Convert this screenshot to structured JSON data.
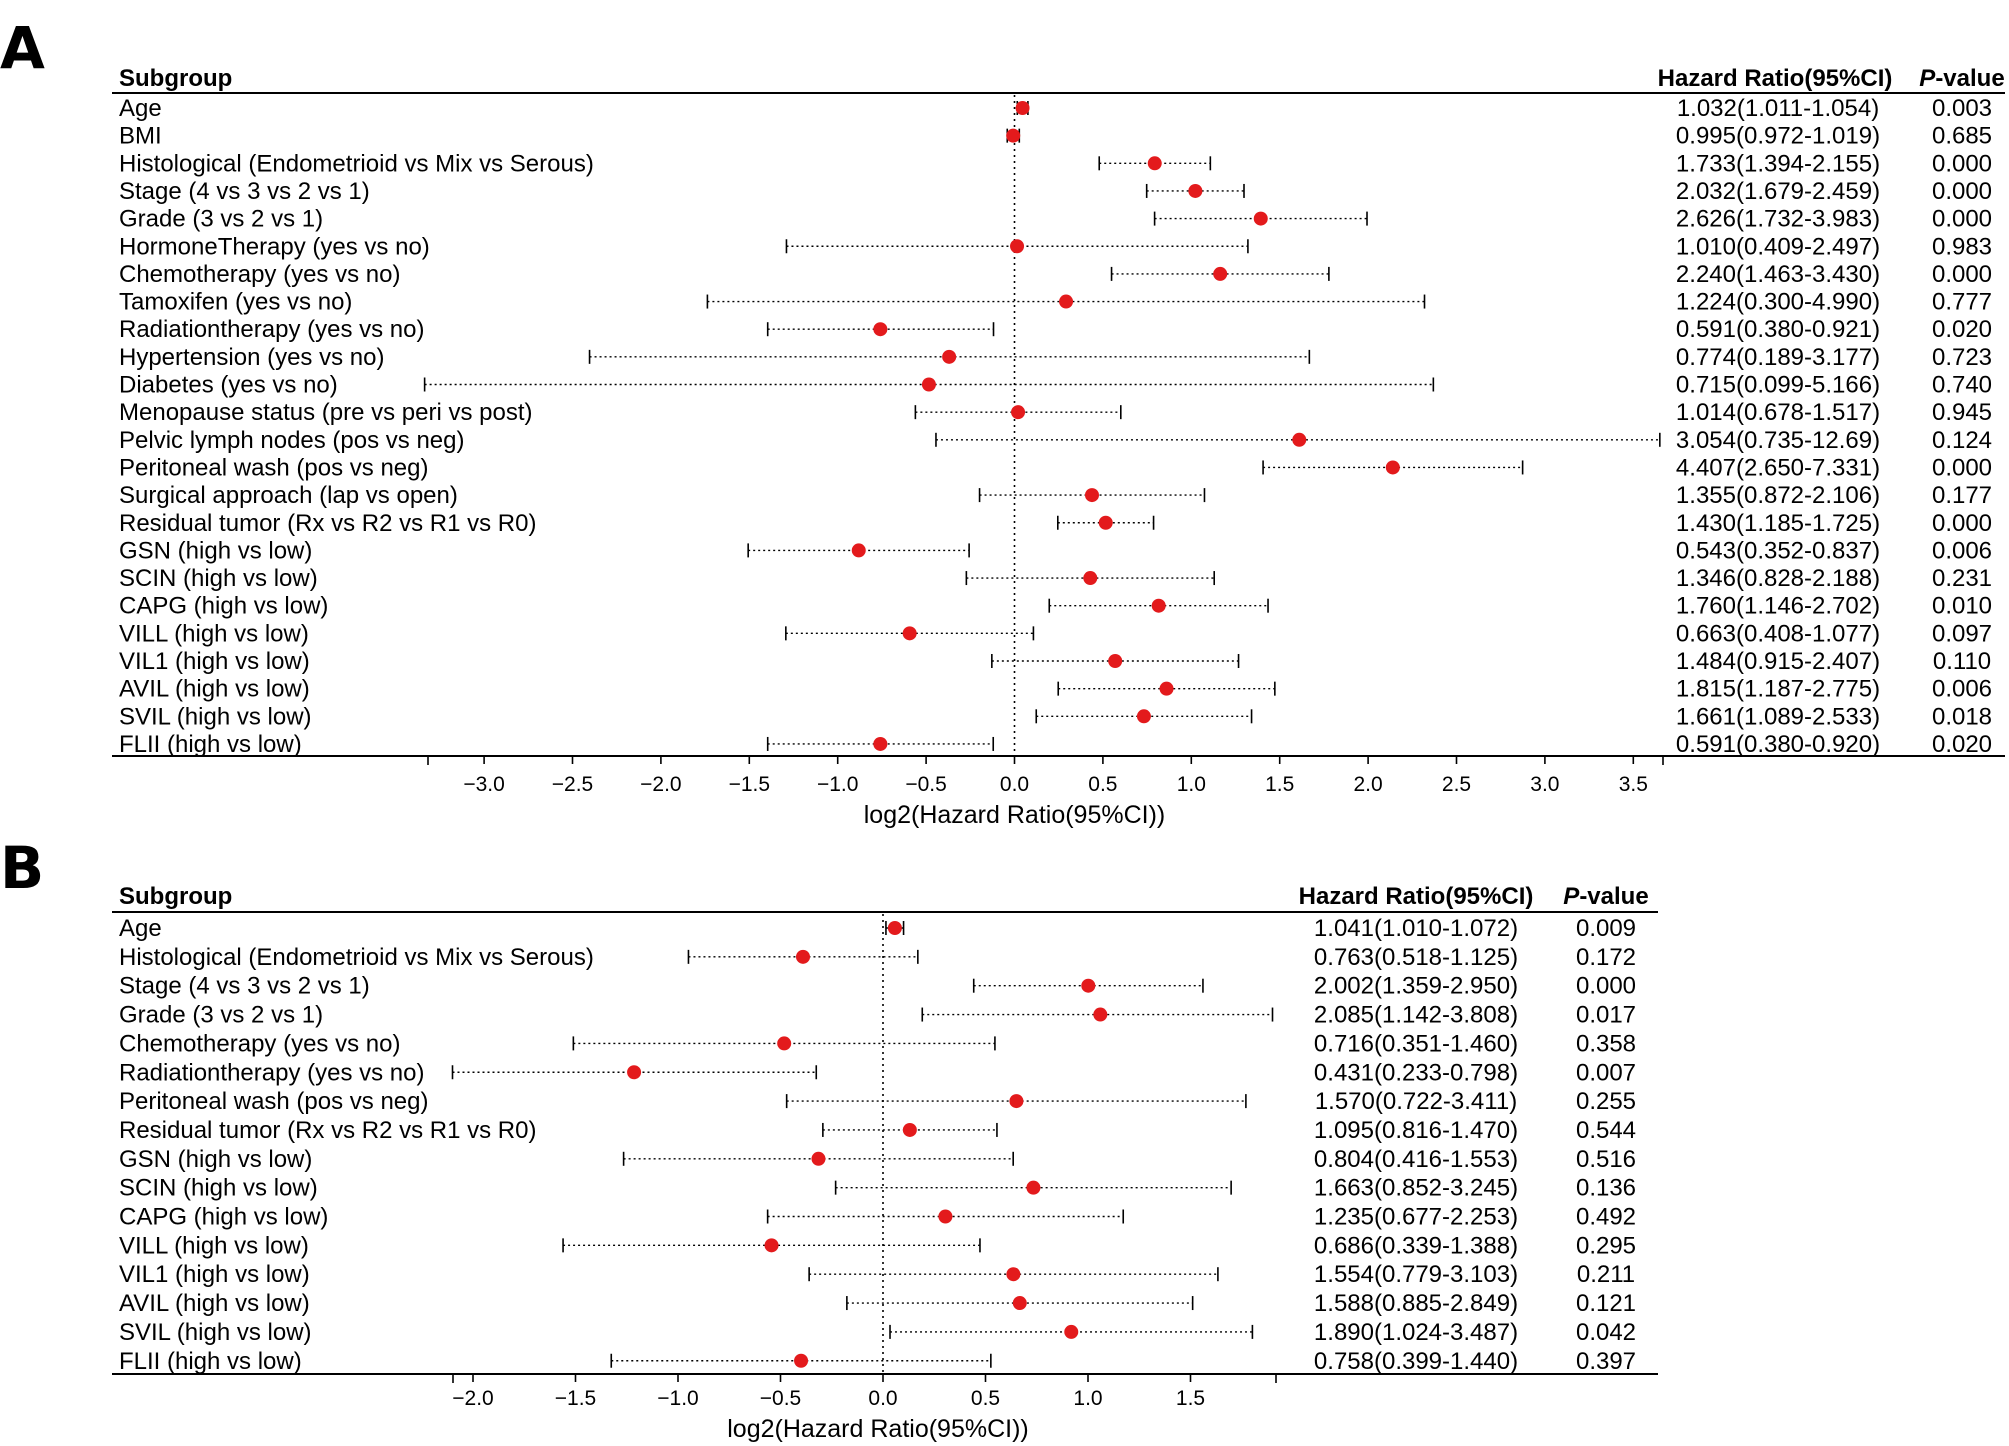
{
  "chart_data": [
    {
      "type": "forest",
      "panel_label": "A",
      "header": {
        "subgroup": "Subgroup",
        "hr": "Hazard Ratio(95%CI)",
        "p_italic": "P",
        "p_rest": "-value"
      },
      "xlabel": "log2(Hazard Ratio(95%CI))",
      "xticks": [
        "−3.0",
        "−2.5",
        "−2.0",
        "−1.5",
        "−1.0",
        "−0.5",
        "0.0",
        "0.5",
        "1.0",
        "1.5",
        "2.0",
        "2.5",
        "3.0",
        "3.5"
      ],
      "xlim": [
        -3.35,
        3.65
      ],
      "reference_line": 0,
      "marker_color": "#e31a1c",
      "rows": [
        {
          "label": "Age",
          "hr_text": "1.032(1.011-1.054)",
          "p": "0.003",
          "hr": 1.032,
          "lo": 1.011,
          "hi": 1.054
        },
        {
          "label": "BMI",
          "hr_text": "0.995(0.972-1.019)",
          "p": "0.685",
          "hr": 0.995,
          "lo": 0.972,
          "hi": 1.019
        },
        {
          "label": "Histological (Endometrioid vs Mix vs Serous)",
          "hr_text": "1.733(1.394-2.155)",
          "p": "0.000",
          "hr": 1.733,
          "lo": 1.394,
          "hi": 2.155
        },
        {
          "label": "Stage (4 vs 3 vs 2 vs 1)",
          "hr_text": "2.032(1.679-2.459)",
          "p": "0.000",
          "hr": 2.032,
          "lo": 1.679,
          "hi": 2.459
        },
        {
          "label": "Grade (3 vs 2 vs 1)",
          "hr_text": "2.626(1.732-3.983)",
          "p": "0.000",
          "hr": 2.626,
          "lo": 1.732,
          "hi": 3.983
        },
        {
          "label": "HormoneTherapy (yes vs no)",
          "hr_text": "1.010(0.409-2.497)",
          "p": "0.983",
          "hr": 1.01,
          "lo": 0.409,
          "hi": 2.497
        },
        {
          "label": "Chemotherapy (yes vs no)",
          "hr_text": "2.240(1.463-3.430)",
          "p": "0.000",
          "hr": 2.24,
          "lo": 1.463,
          "hi": 3.43
        },
        {
          "label": "Tamoxifen (yes vs no)",
          "hr_text": "1.224(0.300-4.990)",
          "p": "0.777",
          "hr": 1.224,
          "lo": 0.3,
          "hi": 4.99
        },
        {
          "label": "Radiationtherapy (yes vs no)",
          "hr_text": "0.591(0.380-0.921)",
          "p": "0.020",
          "hr": 0.591,
          "lo": 0.38,
          "hi": 0.921
        },
        {
          "label": "Hypertension (yes vs no)",
          "hr_text": "0.774(0.189-3.177)",
          "p": "0.723",
          "hr": 0.774,
          "lo": 0.189,
          "hi": 3.177
        },
        {
          "label": "Diabetes (yes vs no)",
          "hr_text": "0.715(0.099-5.166)",
          "p": "0.740",
          "hr": 0.715,
          "lo": 0.099,
          "hi": 5.166
        },
        {
          "label": "Menopause status (pre vs peri vs post)",
          "hr_text": "1.014(0.678-1.517)",
          "p": "0.945",
          "hr": 1.014,
          "lo": 0.678,
          "hi": 1.517
        },
        {
          "label": "Pelvic lymph nodes (pos vs neg)",
          "hr_text": "3.054(0.735-12.69)",
          "p": "0.124",
          "hr": 3.054,
          "lo": 0.735,
          "hi": 12.69
        },
        {
          "label": "Peritoneal wash (pos vs neg)",
          "hr_text": "4.407(2.650-7.331)",
          "p": "0.000",
          "hr": 4.407,
          "lo": 2.65,
          "hi": 7.331
        },
        {
          "label": "Surgical approach (lap vs open)",
          "hr_text": "1.355(0.872-2.106)",
          "p": "0.177",
          "hr": 1.355,
          "lo": 0.872,
          "hi": 2.106
        },
        {
          "label": "Residual tumor (Rx vs R2 vs R1 vs R0)",
          "hr_text": "1.430(1.185-1.725)",
          "p": "0.000",
          "hr": 1.43,
          "lo": 1.185,
          "hi": 1.725
        },
        {
          "label": "GSN (high vs low)",
          "hr_text": "0.543(0.352-0.837)",
          "p": "0.006",
          "hr": 0.543,
          "lo": 0.352,
          "hi": 0.837
        },
        {
          "label": "SCIN (high vs low)",
          "hr_text": "1.346(0.828-2.188)",
          "p": "0.231",
          "hr": 1.346,
          "lo": 0.828,
          "hi": 2.188
        },
        {
          "label": "CAPG (high vs low)",
          "hr_text": "1.760(1.146-2.702)",
          "p": "0.010",
          "hr": 1.76,
          "lo": 1.146,
          "hi": 2.702
        },
        {
          "label": "VILL (high vs low)",
          "hr_text": "0.663(0.408-1.077)",
          "p": "0.097",
          "hr": 0.663,
          "lo": 0.408,
          "hi": 1.077
        },
        {
          "label": "VIL1 (high vs low)",
          "hr_text": "1.484(0.915-2.407)",
          "p": "0.110",
          "hr": 1.484,
          "lo": 0.915,
          "hi": 2.407
        },
        {
          "label": "AVIL (high vs low)",
          "hr_text": "1.815(1.187-2.775)",
          "p": "0.006",
          "hr": 1.815,
          "lo": 1.187,
          "hi": 2.775
        },
        {
          "label": "SVIL (high vs low)",
          "hr_text": "1.661(1.089-2.533)",
          "p": "0.018",
          "hr": 1.661,
          "lo": 1.089,
          "hi": 2.533
        },
        {
          "label": "FLII (high vs low)",
          "hr_text": "0.591(0.380-0.920)",
          "p": "0.020",
          "hr": 0.591,
          "lo": 0.38,
          "hi": 0.92
        }
      ]
    },
    {
      "type": "forest",
      "panel_label": "B",
      "header": {
        "subgroup": "Subgroup",
        "hr": "Hazard Ratio(95%CI)",
        "p_italic": "P",
        "p_rest": "-value"
      },
      "xlabel": "log2(Hazard Ratio(95%CI))",
      "xticks": [
        "−2.0",
        "−1.5",
        "−1.0",
        "−0.5",
        "0.0",
        "0.5",
        "1.0",
        "1.5"
      ],
      "xlim": [
        -2.1,
        1.9
      ],
      "reference_line": 0,
      "marker_color": "#e31a1c",
      "rows": [
        {
          "label": "Age",
          "hr_text": "1.041(1.010-1.072)",
          "p": "0.009",
          "hr": 1.041,
          "lo": 1.01,
          "hi": 1.072
        },
        {
          "label": "Histological (Endometrioid vs Mix vs Serous)",
          "hr_text": "0.763(0.518-1.125)",
          "p": "0.172",
          "hr": 0.763,
          "lo": 0.518,
          "hi": 1.125
        },
        {
          "label": "Stage (4 vs 3 vs 2 vs 1)",
          "hr_text": "2.002(1.359-2.950)",
          "p": "0.000",
          "hr": 2.002,
          "lo": 1.359,
          "hi": 2.95
        },
        {
          "label": "Grade (3 vs 2 vs 1)",
          "hr_text": "2.085(1.142-3.808)",
          "p": "0.017",
          "hr": 2.085,
          "lo": 1.142,
          "hi": 3.808
        },
        {
          "label": "Chemotherapy (yes vs no)",
          "hr_text": "0.716(0.351-1.460)",
          "p": "0.358",
          "hr": 0.716,
          "lo": 0.351,
          "hi": 1.46
        },
        {
          "label": "Radiationtherapy (yes vs no)",
          "hr_text": "0.431(0.233-0.798)",
          "p": "0.007",
          "hr": 0.431,
          "lo": 0.233,
          "hi": 0.798
        },
        {
          "label": "Peritoneal wash (pos vs neg)",
          "hr_text": "1.570(0.722-3.411)",
          "p": "0.255",
          "hr": 1.57,
          "lo": 0.722,
          "hi": 3.411
        },
        {
          "label": "Residual tumor (Rx vs R2 vs R1 vs R0)",
          "hr_text": "1.095(0.816-1.470)",
          "p": "0.544",
          "hr": 1.095,
          "lo": 0.816,
          "hi": 1.47
        },
        {
          "label": "GSN (high vs low)",
          "hr_text": "0.804(0.416-1.553)",
          "p": "0.516",
          "hr": 0.804,
          "lo": 0.416,
          "hi": 1.553
        },
        {
          "label": "SCIN (high vs low)",
          "hr_text": "1.663(0.852-3.245)",
          "p": "0.136",
          "hr": 1.663,
          "lo": 0.852,
          "hi": 3.245
        },
        {
          "label": "CAPG (high vs low)",
          "hr_text": "1.235(0.677-2.253)",
          "p": "0.492",
          "hr": 1.235,
          "lo": 0.677,
          "hi": 2.253
        },
        {
          "label": "VILL (high vs low)",
          "hr_text": "0.686(0.339-1.388)",
          "p": "0.295",
          "hr": 0.686,
          "lo": 0.339,
          "hi": 1.388
        },
        {
          "label": "VIL1 (high vs low)",
          "hr_text": "1.554(0.779-3.103)",
          "p": "0.211",
          "hr": 1.554,
          "lo": 0.779,
          "hi": 3.103
        },
        {
          "label": "AVIL (high vs low)",
          "hr_text": "1.588(0.885-2.849)",
          "p": "0.121",
          "hr": 1.588,
          "lo": 0.885,
          "hi": 2.849
        },
        {
          "label": "SVIL (high vs low)",
          "hr_text": "1.890(1.024-3.487)",
          "p": "0.042",
          "hr": 1.89,
          "lo": 1.024,
          "hi": 3.487
        },
        {
          "label": "FLII (high vs low)",
          "hr_text": "0.758(0.399-1.440)",
          "p": "0.397",
          "hr": 0.758,
          "lo": 0.399,
          "hi": 1.44
        }
      ]
    }
  ]
}
